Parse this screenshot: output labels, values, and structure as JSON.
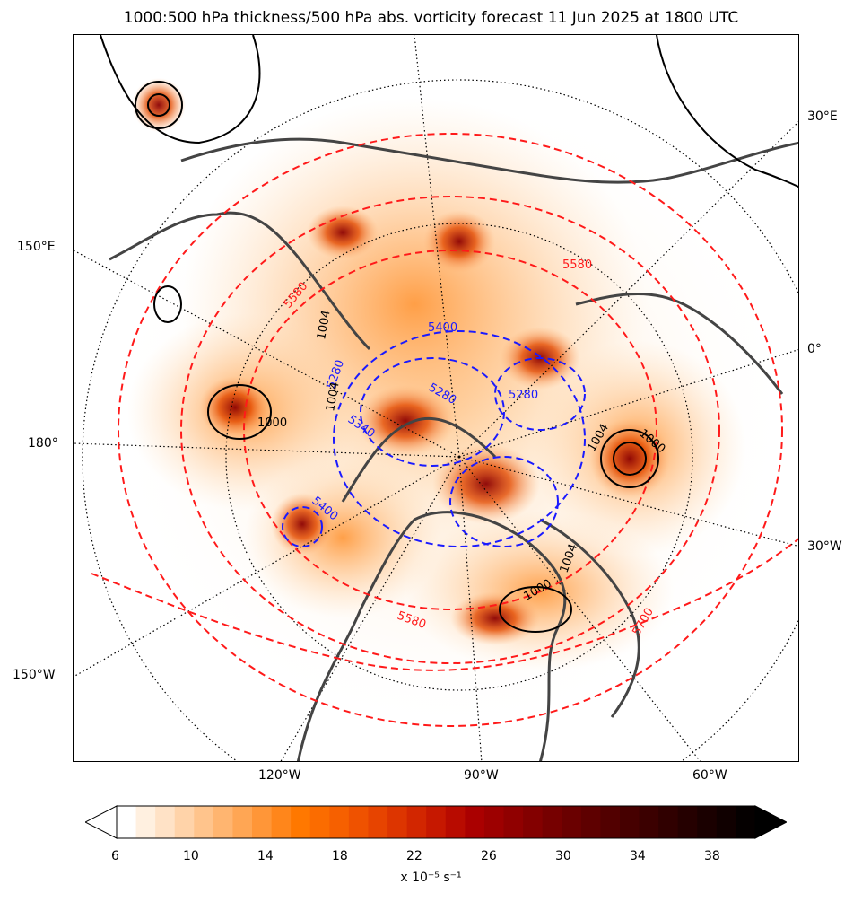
{
  "title": "1000:500 hPa thickness/500 hPa abs. vorticity forecast 11 Jun 2025 at 1800 UTC",
  "map_labels": {
    "lon_30E": "30°E",
    "lon_0": "0°",
    "lon_30W": "30°W",
    "lon_150E": "150°E",
    "lon_180": "180°",
    "lon_150W": "150°W",
    "lon_120W": "120°W",
    "lon_90W": "90°W",
    "lon_60W": "60°W"
  },
  "contour_labels": {
    "thickness_blue": [
      "5400",
      "5280",
      "5280",
      "5340",
      "5280",
      "5400"
    ],
    "thickness_red": [
      "5580",
      "5580",
      "5700",
      "5580"
    ],
    "pressure_black": [
      "1004",
      "1004",
      "1000",
      "1004",
      "1000",
      "1000",
      "1004"
    ]
  },
  "colorbar": {
    "ticks": [
      "6",
      "10",
      "14",
      "18",
      "22",
      "26",
      "30",
      "34",
      "38"
    ],
    "label": "x 10⁻⁵ s⁻¹",
    "colors": [
      "#ffffff",
      "#fff0e0",
      "#ffe2c6",
      "#ffd3a9",
      "#ffc48c",
      "#ffb570",
      "#ffa654",
      "#ff9638",
      "#ff861b",
      "#ff7800",
      "#fb6c00",
      "#f66000",
      "#ef5200",
      "#e74400",
      "#dd3500",
      "#d22600",
      "#c61800",
      "#b80b00",
      "#aa0000",
      "#9d0000",
      "#900000",
      "#830000",
      "#760000",
      "#6a0000",
      "#5e0000",
      "#520000",
      "#460000",
      "#3b0000",
      "#300000",
      "#250000",
      "#1a0000",
      "#100000",
      "#050000"
    ]
  }
}
